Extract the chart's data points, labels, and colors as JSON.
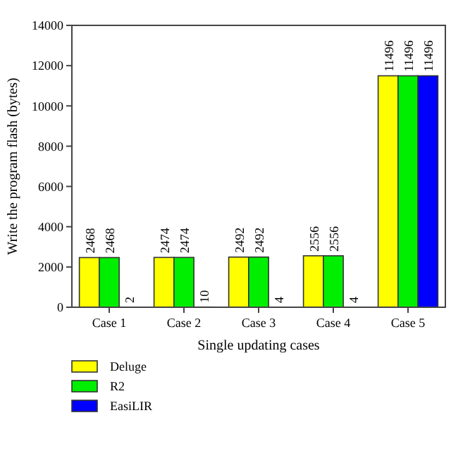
{
  "chart_data": {
    "type": "bar",
    "xlabel": "Single updating cases",
    "ylabel": "Write the program flash (bytes)",
    "categories": [
      "Case 1",
      "Case 2",
      "Case 3",
      "Case 4",
      "Case 5"
    ],
    "series": [
      {
        "name": "Deluge",
        "color": "#ffff00",
        "values": [
          2468,
          2474,
          2492,
          2556,
          11496
        ]
      },
      {
        "name": "R2",
        "color": "#00ee00",
        "values": [
          2468,
          2474,
          2492,
          2556,
          11496
        ]
      },
      {
        "name": "EasiLIR",
        "color": "#0000ff",
        "values": [
          2,
          10,
          4,
          4,
          11496
        ]
      }
    ],
    "ylim": [
      0,
      14000
    ],
    "yticks": [
      0,
      2000,
      4000,
      6000,
      8000,
      10000,
      12000,
      14000
    ],
    "data_labels": true,
    "legend": "bottom left",
    "grid": false
  }
}
